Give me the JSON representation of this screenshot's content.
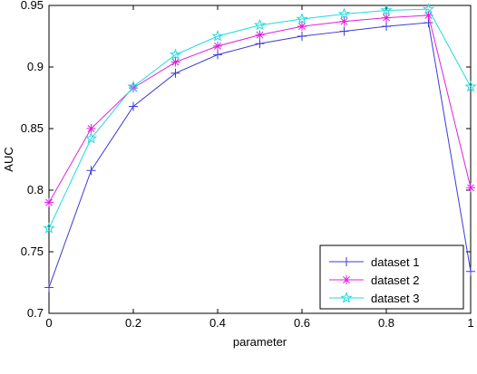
{
  "chart_data": {
    "type": "line",
    "title": "",
    "xlabel": "parameter",
    "ylabel": "AUC",
    "xlim": [
      0,
      1
    ],
    "ylim": [
      0.7,
      0.95
    ],
    "xticks": [
      "0",
      "0.2",
      "0.4",
      "0.6",
      "0.8",
      "1"
    ],
    "yticks": [
      "0.7",
      "0.75",
      "0.8",
      "0.85",
      "0.9",
      "0.95"
    ],
    "grid": false,
    "legend_position": "bottom-right",
    "x": [
      0,
      0.1,
      0.2,
      0.3,
      0.4,
      0.5,
      0.6,
      0.7,
      0.8,
      0.9,
      1.0
    ],
    "series": [
      {
        "name": "dataset 1",
        "color": "#3b3bd6",
        "marker": "plus",
        "values": [
          0.721,
          0.816,
          0.868,
          0.895,
          0.91,
          0.919,
          0.925,
          0.929,
          0.933,
          0.936,
          0.734
        ]
      },
      {
        "name": "dataset 2",
        "color": "#e020e0",
        "marker": "asterisk",
        "values": [
          0.79,
          0.85,
          0.883,
          0.904,
          0.917,
          0.926,
          0.933,
          0.937,
          0.94,
          0.942,
          0.802
        ]
      },
      {
        "name": "dataset 3",
        "color": "#20dada",
        "marker": "star",
        "values": [
          0.769,
          0.842,
          0.884,
          0.91,
          0.925,
          0.934,
          0.939,
          0.943,
          0.946,
          0.947,
          0.884
        ]
      }
    ]
  }
}
